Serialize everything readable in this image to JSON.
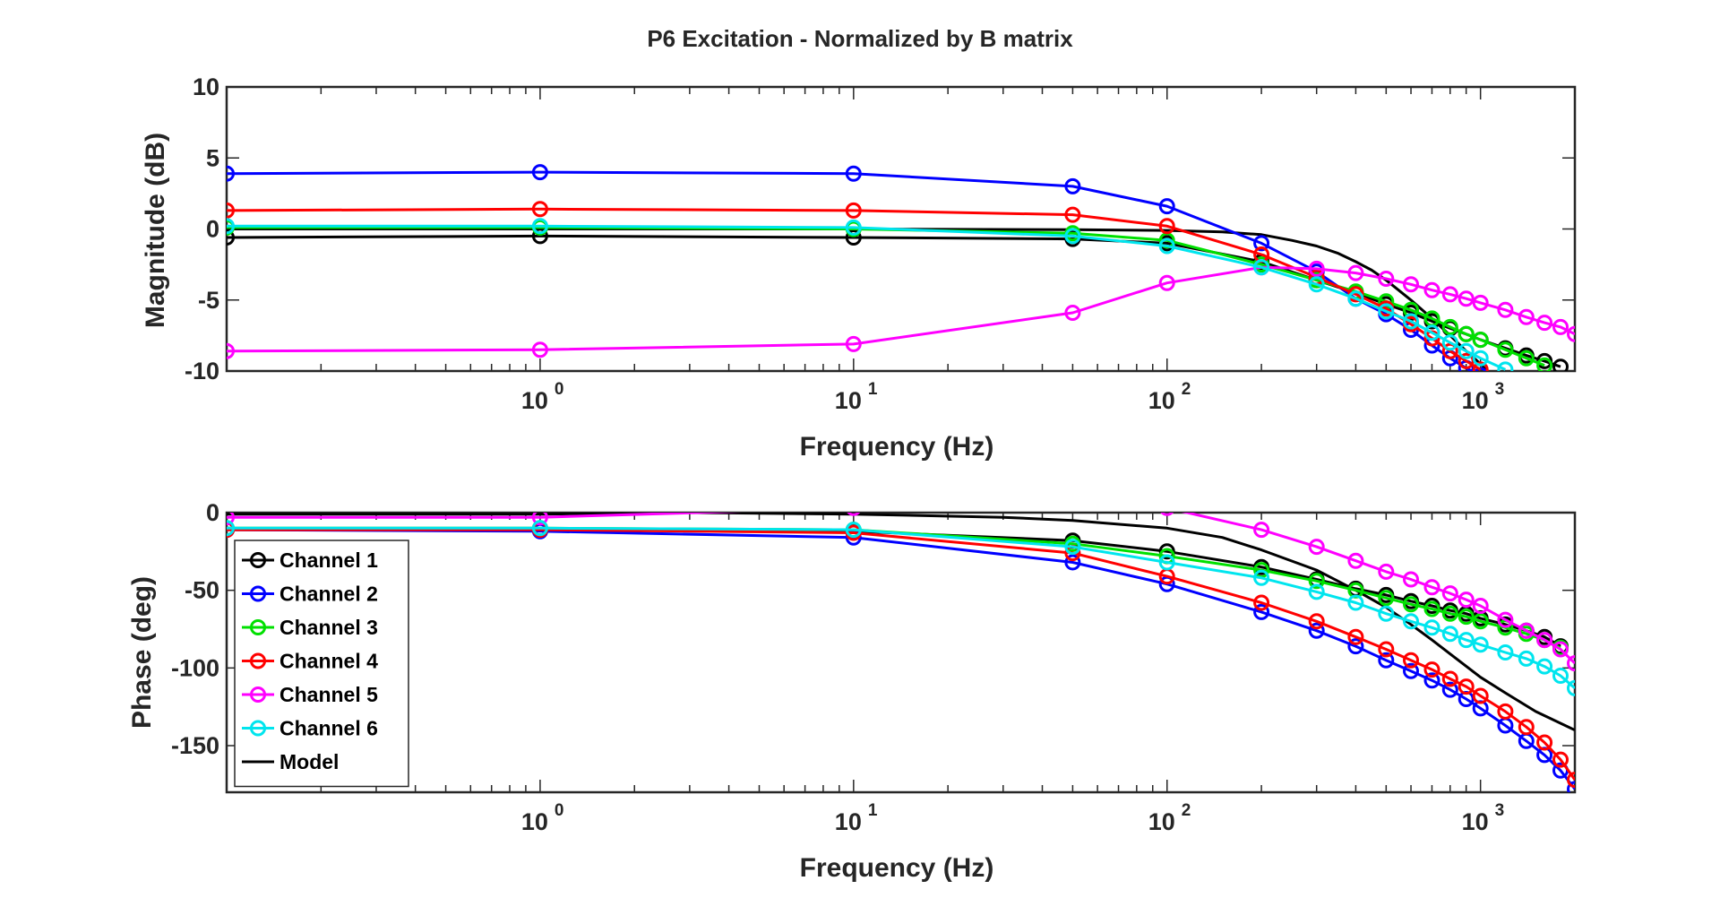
{
  "figure": {
    "title": "P6 Excitation - Normalized by B matrix"
  },
  "chart_data": [
    {
      "type": "line",
      "x_scale": "log",
      "xlim": [
        0.1,
        2000
      ],
      "ylim": [
        -10,
        10
      ],
      "xlabel": "Frequency (Hz)",
      "ylabel": "Magnitude (dB)",
      "x_ticks": [
        {
          "value": 1,
          "base": "10",
          "exp": "0"
        },
        {
          "value": 10,
          "base": "10",
          "exp": "1"
        },
        {
          "value": 100,
          "base": "10",
          "exp": "2"
        },
        {
          "value": 1000,
          "base": "10",
          "exp": "3"
        }
      ],
      "y_ticks": [
        {
          "value": 10,
          "label": "10"
        },
        {
          "value": 5,
          "label": "5"
        },
        {
          "value": 0,
          "label": "0"
        },
        {
          "value": -5,
          "label": "-5"
        },
        {
          "value": -10,
          "label": "-10"
        }
      ],
      "grid": false,
      "legend": "none",
      "series": [
        {
          "name": "Channel 1",
          "color": "#000000",
          "marker": "circle",
          "x": [
            0.1,
            1,
            10,
            50,
            100,
            200,
            300,
            400,
            500,
            600,
            700,
            800,
            900,
            1000,
            1200,
            1400,
            1600,
            1800
          ],
          "y": [
            -0.6,
            -0.5,
            -0.6,
            -0.7,
            -1.0,
            -2.3,
            -3.6,
            -4.5,
            -5.3,
            -5.9,
            -6.5,
            -7.0,
            -7.4,
            -7.8,
            -8.4,
            -8.9,
            -9.3,
            -9.7
          ]
        },
        {
          "name": "Channel 2",
          "color": "#0000ff",
          "marker": "circle",
          "x": [
            0.1,
            1,
            10,
            50,
            100,
            200,
            300,
            400,
            500,
            600,
            700,
            800,
            900,
            1000
          ],
          "y": [
            3.9,
            4.0,
            3.9,
            3.0,
            1.6,
            -1.0,
            -3.0,
            -4.9,
            -6.0,
            -7.1,
            -8.2,
            -9.1,
            -9.8,
            -10.3
          ]
        },
        {
          "name": "Channel 3",
          "color": "#00e000",
          "marker": "circle",
          "x": [
            0.1,
            1,
            10,
            50,
            100,
            200,
            300,
            400,
            500,
            600,
            700,
            800,
            900,
            1000,
            1200,
            1400,
            1600
          ],
          "y": [
            0.1,
            0.1,
            0.0,
            -0.3,
            -0.8,
            -2.5,
            -3.6,
            -4.4,
            -5.1,
            -5.7,
            -6.3,
            -6.9,
            -7.4,
            -7.8,
            -8.5,
            -9.1,
            -9.6
          ]
        },
        {
          "name": "Channel 4",
          "color": "#ff0000",
          "marker": "circle",
          "x": [
            0.1,
            1,
            10,
            50,
            100,
            200,
            300,
            400,
            500,
            600,
            700,
            800,
            900,
            1000
          ],
          "y": [
            1.3,
            1.4,
            1.3,
            1.0,
            0.2,
            -1.8,
            -3.4,
            -4.6,
            -5.6,
            -6.7,
            -7.7,
            -8.6,
            -9.3,
            -9.9
          ]
        },
        {
          "name": "Channel 5",
          "color": "#ff00ff",
          "marker": "circle",
          "x": [
            0.1,
            1,
            10,
            50,
            100,
            200,
            300,
            400,
            500,
            600,
            700,
            800,
            900,
            1000,
            1200,
            1400,
            1600,
            1800,
            2000
          ],
          "y": [
            -8.6,
            -8.5,
            -8.1,
            -5.9,
            -3.8,
            -2.7,
            -2.8,
            -3.1,
            -3.5,
            -3.9,
            -4.3,
            -4.6,
            -4.9,
            -5.2,
            -5.7,
            -6.2,
            -6.6,
            -6.9,
            -7.4
          ]
        },
        {
          "name": "Channel 6",
          "color": "#00e5ee",
          "marker": "circle",
          "x": [
            0.1,
            1,
            10,
            50,
            100,
            200,
            300,
            400,
            500,
            600,
            700,
            800,
            900,
            1000,
            1200
          ],
          "y": [
            0.2,
            0.2,
            0.1,
            -0.5,
            -1.2,
            -2.7,
            -3.9,
            -4.9,
            -5.8,
            -6.5,
            -7.3,
            -8.0,
            -8.6,
            -9.1,
            -9.9
          ]
        },
        {
          "name": "Model",
          "color": "#000000",
          "marker": "none",
          "x": [
            0.1,
            1,
            10,
            50,
            100,
            150,
            200,
            250,
            300,
            350,
            400,
            450,
            500,
            600,
            700,
            800,
            900,
            1000,
            1050
          ],
          "y": [
            0.0,
            0.0,
            0.0,
            -0.05,
            -0.1,
            -0.2,
            -0.4,
            -0.8,
            -1.2,
            -1.7,
            -2.3,
            -2.9,
            -3.6,
            -5.0,
            -6.3,
            -7.5,
            -8.6,
            -9.5,
            -10.0
          ]
        }
      ]
    },
    {
      "type": "line",
      "x_scale": "log",
      "xlim": [
        0.1,
        2000
      ],
      "ylim": [
        -180,
        0
      ],
      "xlabel": "Frequency (Hz)",
      "ylabel": "Phase (deg)",
      "x_ticks": [
        {
          "value": 1,
          "base": "10",
          "exp": "0"
        },
        {
          "value": 10,
          "base": "10",
          "exp": "1"
        },
        {
          "value": 100,
          "base": "10",
          "exp": "2"
        },
        {
          "value": 1000,
          "base": "10",
          "exp": "3"
        }
      ],
      "y_ticks": [
        {
          "value": 0,
          "label": "0"
        },
        {
          "value": -50,
          "label": "-50"
        },
        {
          "value": -100,
          "label": "-100"
        },
        {
          "value": -150,
          "label": "-150"
        }
      ],
      "grid": false,
      "legend": "lower-left",
      "series": [
        {
          "name": "Channel 1",
          "color": "#000000",
          "marker": "circle",
          "x": [
            0.1,
            1,
            10,
            50,
            100,
            200,
            300,
            400,
            500,
            600,
            700,
            800,
            900,
            1000,
            1200,
            1400,
            1600,
            1800
          ],
          "y": [
            -11,
            -11,
            -12,
            -18,
            -25,
            -35,
            -43,
            -49,
            -53,
            -57,
            -60,
            -63,
            -65,
            -68,
            -72,
            -76,
            -80,
            -86
          ]
        },
        {
          "name": "Channel 2",
          "color": "#0000ff",
          "marker": "circle",
          "x": [
            0.1,
            1,
            10,
            50,
            100,
            200,
            300,
            400,
            500,
            600,
            700,
            800,
            900,
            1000,
            1200,
            1400,
            1600,
            1800,
            2000
          ],
          "y": [
            -11,
            -12,
            -16,
            -32,
            -46,
            -64,
            -76,
            -86,
            -95,
            -102,
            -108,
            -114,
            -120,
            -126,
            -137,
            -147,
            -156,
            -166,
            -178
          ]
        },
        {
          "name": "Channel 3",
          "color": "#00e000",
          "marker": "circle",
          "x": [
            0.1,
            1,
            10,
            50,
            100,
            200,
            300,
            400,
            500,
            600,
            700,
            800,
            900,
            1000,
            1200,
            1400,
            1600,
            1800
          ],
          "y": [
            -10,
            -10,
            -11,
            -20,
            -28,
            -37,
            -44,
            -50,
            -55,
            -59,
            -62,
            -65,
            -67,
            -70,
            -74,
            -78,
            -82,
            -87
          ]
        },
        {
          "name": "Channel 4",
          "color": "#ff0000",
          "marker": "circle",
          "x": [
            0.1,
            1,
            10,
            50,
            100,
            200,
            300,
            400,
            500,
            600,
            700,
            800,
            900,
            1000,
            1200,
            1400,
            1600,
            1800,
            2000
          ],
          "y": [
            -11,
            -11,
            -13,
            -26,
            -41,
            -58,
            -70,
            -80,
            -88,
            -95,
            -101,
            -107,
            -112,
            -118,
            -128,
            -138,
            -148,
            -159,
            -172
          ]
        },
        {
          "name": "Channel 5",
          "color": "#ff00ff",
          "marker": "circle",
          "x": [
            0.1,
            1,
            10,
            100,
            200,
            300,
            400,
            500,
            600,
            700,
            800,
            900,
            1000,
            1200,
            1400,
            1600,
            1800,
            2000
          ],
          "y": [
            -3,
            -3,
            3,
            3,
            -11,
            -22,
            -31,
            -38,
            -43,
            -48,
            -52,
            -56,
            -60,
            -69,
            -76,
            -82,
            -88,
            -97
          ],
          "gaps": [
            [
              12,
              90
            ]
          ]
        },
        {
          "name": "Channel 6",
          "color": "#00e5ee",
          "marker": "circle",
          "x": [
            0.1,
            1,
            10,
            50,
            100,
            200,
            300,
            400,
            500,
            600,
            700,
            800,
            900,
            1000,
            1200,
            1400,
            1600,
            1800,
            2000
          ],
          "y": [
            -10,
            -10,
            -11,
            -22,
            -32,
            -42,
            -51,
            -58,
            -65,
            -70,
            -74,
            -78,
            -82,
            -85,
            -90,
            -94,
            -99,
            -105,
            -113
          ]
        },
        {
          "name": "Model",
          "color": "#000000",
          "marker": "none",
          "x": [
            0.1,
            1,
            3,
            10,
            30,
            50,
            100,
            150,
            200,
            300,
            400,
            500,
            600,
            700,
            800,
            1000,
            1200,
            1500,
            2000
          ],
          "y": [
            -1,
            -1,
            0,
            -1,
            -3,
            -5,
            -10,
            -16,
            -24,
            -37,
            -50,
            -61,
            -72,
            -82,
            -91,
            -106,
            -116,
            -128,
            -140
          ]
        }
      ]
    }
  ]
}
